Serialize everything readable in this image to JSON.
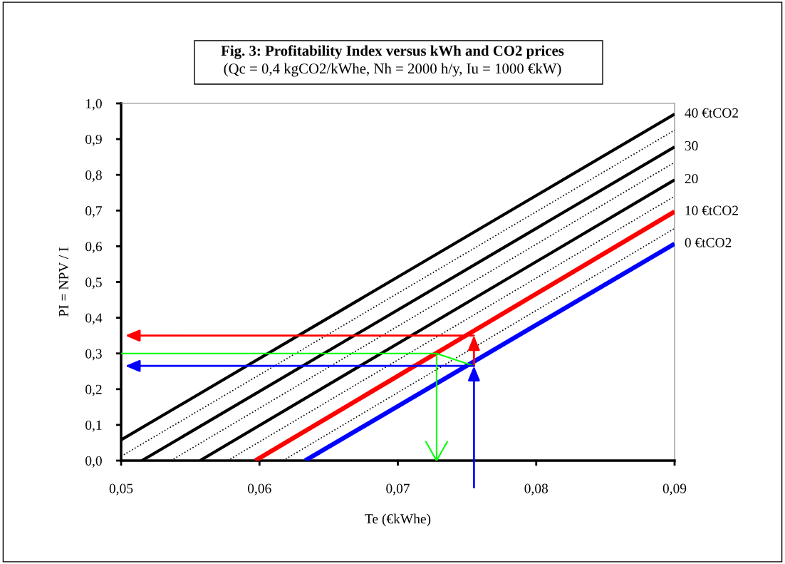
{
  "chart_data": {
    "type": "line",
    "title": "Fig. 3: Profitability Index versus kWh and CO2 prices",
    "subtitle": "(Qc = 0,4 kgCO2/kWhe, Nh = 2000 h/y, Iu = 1000 €kW)",
    "xlabel": "Te (€kWhe)",
    "ylabel": "PI = NPV / I",
    "xlim": [
      0.05,
      0.09
    ],
    "xticks": [
      {
        "value": 0.05,
        "label": "0,05"
      },
      {
        "value": 0.06,
        "label": "0,06"
      },
      {
        "value": 0.07,
        "label": "0,07"
      },
      {
        "value": 0.08,
        "label": "0,08"
      },
      {
        "value": 0.09,
        "label": "0,09"
      }
    ],
    "ylim": [
      0,
      1
    ],
    "yticks": [
      {
        "value": 0,
        "label": "0,0"
      },
      {
        "value": 0.1,
        "label": "0,1"
      },
      {
        "value": 0.2,
        "label": "0,2"
      },
      {
        "value": 0.3,
        "label": "0,3"
      },
      {
        "value": 0.4,
        "label": "0,4"
      },
      {
        "value": 0.5,
        "label": "0,5"
      },
      {
        "value": 0.6,
        "label": "0,6"
      },
      {
        "value": 0.7,
        "label": "0,7"
      },
      {
        "value": 0.8,
        "label": "0,8"
      },
      {
        "value": 0.9,
        "label": "0,9"
      },
      {
        "value": 1.0,
        "label": "1,0"
      }
    ],
    "grid": false,
    "legend": false,
    "marker": "none",
    "series": [
      {
        "name": "40 €tCO2",
        "color": "#000000",
        "line_style": "solid",
        "x": [
          0.05,
          0.09
        ],
        "values": [
          0.058,
          0.97
        ]
      },
      {
        "color": "#000000",
        "line_style": "dotted",
        "x": [
          0.05,
          0.09
        ],
        "values": [
          0.012,
          0.925
        ]
      },
      {
        "name": "30",
        "color": "#000000",
        "line_style": "solid",
        "x": [
          0.0515,
          0.09
        ],
        "values": [
          0,
          0.878
        ]
      },
      {
        "color": "#000000",
        "line_style": "dotted",
        "x": [
          0.0536,
          0.09
        ],
        "values": [
          0,
          0.835
        ]
      },
      {
        "name": "20",
        "color": "#000000",
        "line_style": "solid",
        "x": [
          0.0557,
          0.09
        ],
        "values": [
          0,
          0.786
        ]
      },
      {
        "color": "#000000",
        "line_style": "dotted",
        "x": [
          0.0577,
          0.09
        ],
        "values": [
          0,
          0.74
        ]
      },
      {
        "name": "10 €tCO2",
        "color": "#ff0000",
        "line_style": "solid",
        "x": [
          0.0597,
          0.09
        ],
        "values": [
          0,
          0.697
        ]
      },
      {
        "color": "#000000",
        "line_style": "dotted",
        "x": [
          0.0617,
          0.09
        ],
        "values": [
          0,
          0.65
        ]
      },
      {
        "name": "0 €tCO2",
        "color": "#0000ff",
        "line_style": "solid",
        "x": [
          0.0633,
          0.09
        ],
        "values": [
          0,
          0.607
        ]
      },
      {
        "color": "#00ff00",
        "line_style": "solid",
        "x": [
          0.05,
          0.0728,
          0.0755
        ],
        "values": [
          0.3,
          0.3,
          0.265
        ]
      }
    ]
  }
}
